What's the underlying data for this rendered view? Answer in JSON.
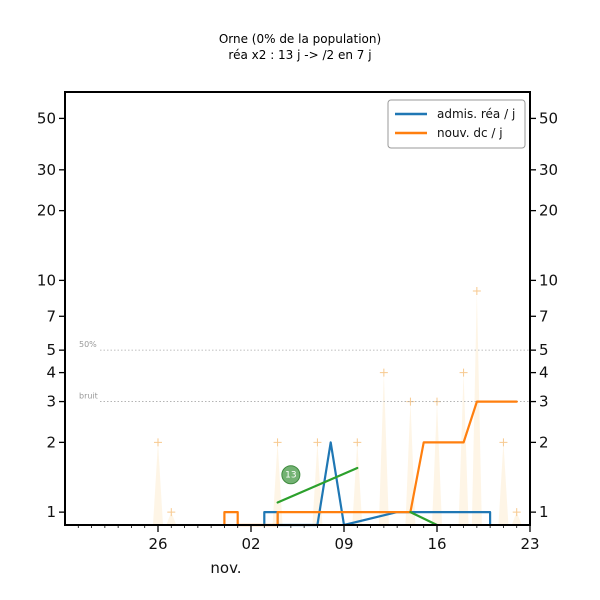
{
  "chart_data": {
    "type": "line",
    "title": "Orne (0% de la population)",
    "subtitle": "réa x2 : 13 j -> /2 en 7 j",
    "yscale": "log",
    "ylim": [
      0.88,
      65
    ],
    "xlim": [
      "2020-10-19",
      "2020-11-23"
    ],
    "y_ticks": [
      1,
      2,
      3,
      4,
      5,
      7,
      10,
      20,
      30,
      50
    ],
    "x_ticks": [
      {
        "date": "2020-10-26",
        "label": "26"
      },
      {
        "date": "2020-11-02",
        "label": "02"
      },
      {
        "date": "2020-11-09",
        "label": "09"
      },
      {
        "date": "2020-11-16",
        "label": "16"
      },
      {
        "date": "2020-11-23",
        "label": "23"
      }
    ],
    "x_month_label": "nov.",
    "reference_lines": [
      {
        "value": 5,
        "label": "50%"
      },
      {
        "value": 3,
        "label": "bruit"
      }
    ],
    "legend": {
      "position": "top-right"
    },
    "series": [
      {
        "name": "admis. réa / j",
        "color": "#1f77b4",
        "points": [
          [
            "2020-11-03",
            0.85
          ],
          [
            "2020-11-03",
            1.0
          ],
          [
            "2020-11-04",
            1.0
          ],
          [
            "2020-11-04",
            0.85
          ],
          [
            "2020-11-07",
            0.85
          ],
          [
            "2020-11-08",
            2.0
          ],
          [
            "2020-11-09",
            0.85
          ],
          [
            "2020-11-13",
            1.0
          ],
          [
            "2020-11-14",
            1.0
          ],
          [
            "2020-11-20",
            1.0
          ],
          [
            "2020-11-20",
            0.85
          ]
        ]
      },
      {
        "name": "nouv. dc / j",
        "color": "#ff7f0e",
        "points": [
          [
            "2020-10-31",
            0.85
          ],
          [
            "2020-10-31",
            1.0
          ],
          [
            "2020-11-01",
            1.0
          ],
          [
            "2020-11-01",
            0.85
          ],
          [
            "2020-11-04",
            0.85
          ],
          [
            "2020-11-04",
            1.0
          ],
          [
            "2020-11-14",
            1.0
          ],
          [
            "2020-11-15",
            2.0
          ],
          [
            "2020-11-18",
            2.0
          ],
          [
            "2020-11-19",
            3.0
          ],
          [
            "2020-11-22",
            3.0
          ]
        ]
      },
      {
        "color": "#2ca02c",
        "points": [
          [
            "2020-11-04",
            1.1
          ],
          [
            "2020-11-10",
            1.55
          ]
        ]
      },
      {
        "color": "#2ca02c",
        "points": [
          [
            "2020-11-14",
            1.0
          ],
          [
            "2020-11-16",
            0.85
          ]
        ]
      }
    ],
    "noise_markers": {
      "color": "#fde8c8",
      "points": [
        [
          "2020-10-26",
          2.0
        ],
        [
          "2020-10-27",
          1.0
        ],
        [
          "2020-11-04",
          2.0
        ],
        [
          "2020-11-07",
          2.0
        ],
        [
          "2020-11-10",
          2.0
        ],
        [
          "2020-11-12",
          4.0
        ],
        [
          "2020-11-14",
          3.0
        ],
        [
          "2020-11-16",
          3.0
        ],
        [
          "2020-11-18",
          4.0
        ],
        [
          "2020-11-19",
          9.0
        ],
        [
          "2020-11-21",
          2.0
        ],
        [
          "2020-11-22",
          1.0
        ]
      ]
    },
    "annotations": [
      {
        "text": "13",
        "x": "2020-11-05",
        "y": 1.45,
        "color": "#5aa55a"
      }
    ]
  }
}
